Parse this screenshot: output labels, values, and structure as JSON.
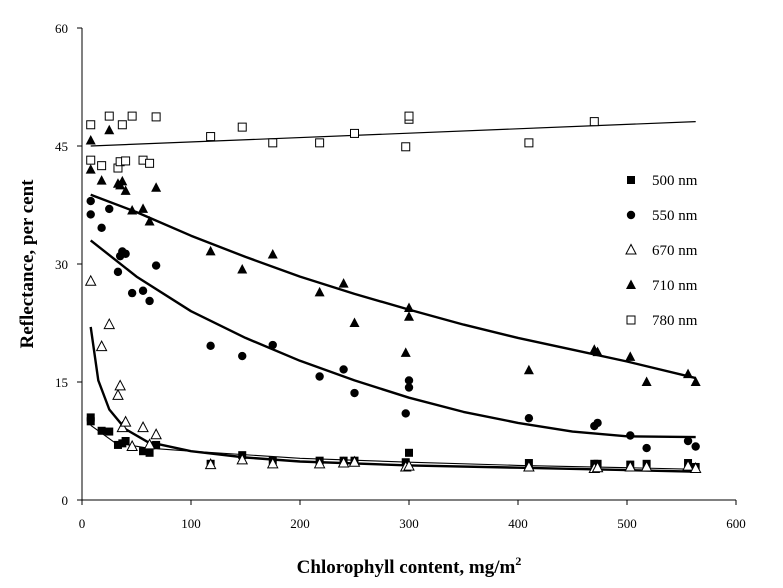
{
  "chart_data": {
    "type": "scatter",
    "title": "",
    "xlabel": "Chlorophyll content, mg/m",
    "xlabel_sup": "2",
    "ylabel": "Reflectance, per cent",
    "xlim": [
      0,
      600
    ],
    "ylim": [
      0,
      60
    ],
    "xticks": [
      "0",
      "100",
      "200",
      "300",
      "400",
      "500",
      "600"
    ],
    "yticks": [
      "0",
      "15",
      "30",
      "45",
      "60"
    ],
    "grid": false,
    "legend_position": "right",
    "series": [
      {
        "name": "500 nm",
        "marker": "filled-square",
        "points": [
          [
            8,
            10
          ],
          [
            8,
            10.5
          ],
          [
            18,
            8.8
          ],
          [
            25,
            8.7
          ],
          [
            33,
            7
          ],
          [
            37,
            7.2
          ],
          [
            40,
            7.5
          ],
          [
            56,
            6.2
          ],
          [
            62,
            6
          ],
          [
            68,
            7
          ],
          [
            118,
            4.6
          ],
          [
            147,
            5.7
          ],
          [
            175,
            5
          ],
          [
            218,
            5
          ],
          [
            240,
            5
          ],
          [
            250,
            5
          ],
          [
            297,
            4.8
          ],
          [
            300,
            6
          ],
          [
            410,
            4.7
          ],
          [
            470,
            4.6
          ],
          [
            473,
            4.6
          ],
          [
            503,
            4.5
          ],
          [
            518,
            4.6
          ],
          [
            556,
            4.7
          ],
          [
            563,
            4.2
          ]
        ],
        "fit": [
          [
            8,
            9.5
          ],
          [
            30,
            7.3
          ],
          [
            60,
            6.6
          ],
          [
            100,
            6.2
          ],
          [
            200,
            5.3
          ],
          [
            300,
            4.8
          ],
          [
            400,
            4.4
          ],
          [
            500,
            4.1
          ],
          [
            563,
            3.9
          ]
        ]
      },
      {
        "name": "550 nm",
        "marker": "filled-circle",
        "points": [
          [
            8,
            38
          ],
          [
            8,
            36.3
          ],
          [
            18,
            34.6
          ],
          [
            25,
            37
          ],
          [
            33,
            29
          ],
          [
            35,
            31
          ],
          [
            37,
            31.6
          ],
          [
            40,
            31.3
          ],
          [
            46,
            26.3
          ],
          [
            56,
            26.6
          ],
          [
            62,
            25.3
          ],
          [
            68,
            29.8
          ],
          [
            118,
            19.6
          ],
          [
            147,
            18.3
          ],
          [
            175,
            19.7
          ],
          [
            218,
            15.7
          ],
          [
            240,
            16.6
          ],
          [
            250,
            13.6
          ],
          [
            297,
            11
          ],
          [
            300,
            15.2
          ],
          [
            300,
            14.3
          ],
          [
            410,
            10.4
          ],
          [
            470,
            9.4
          ],
          [
            473,
            9.8
          ],
          [
            503,
            8.2
          ],
          [
            518,
            6.6
          ],
          [
            556,
            7.5
          ],
          [
            563,
            6.8
          ]
        ],
        "fit": [
          [
            8,
            33
          ],
          [
            50,
            28.4
          ],
          [
            100,
            24
          ],
          [
            150,
            20.6
          ],
          [
            200,
            17.7
          ],
          [
            250,
            15.2
          ],
          [
            300,
            13
          ],
          [
            350,
            11.2
          ],
          [
            400,
            9.8
          ],
          [
            450,
            8.7
          ],
          [
            500,
            8.1
          ],
          [
            563,
            8
          ]
        ]
      },
      {
        "name": "670 nm",
        "marker": "open-triangle",
        "points": [
          [
            8,
            27.8
          ],
          [
            18,
            19.5
          ],
          [
            25,
            22.3
          ],
          [
            33,
            13.3
          ],
          [
            35,
            14.5
          ],
          [
            37,
            9.2
          ],
          [
            40,
            9.9
          ],
          [
            46,
            6.8
          ],
          [
            56,
            9.2
          ],
          [
            62,
            7
          ],
          [
            68,
            8.3
          ],
          [
            118,
            4.5
          ],
          [
            147,
            5.1
          ],
          [
            175,
            4.6
          ],
          [
            218,
            4.6
          ],
          [
            240,
            4.7
          ],
          [
            250,
            4.8
          ],
          [
            297,
            4.2
          ],
          [
            300,
            4.3
          ],
          [
            410,
            4.2
          ],
          [
            470,
            4
          ],
          [
            473,
            4.1
          ],
          [
            503,
            4.2
          ],
          [
            518,
            4.2
          ],
          [
            556,
            4.3
          ],
          [
            563,
            4
          ]
        ],
        "fit": [
          [
            8,
            22
          ],
          [
            15,
            15.2
          ],
          [
            25,
            11.5
          ],
          [
            40,
            9
          ],
          [
            60,
            7.4
          ],
          [
            100,
            6.2
          ],
          [
            150,
            5.4
          ],
          [
            200,
            4.9
          ],
          [
            300,
            4.4
          ],
          [
            400,
            4.1
          ],
          [
            500,
            3.8
          ],
          [
            563,
            3.6
          ]
        ]
      },
      {
        "name": "710 nm",
        "marker": "filled-triangle",
        "points": [
          [
            8,
            45.7
          ],
          [
            8,
            42
          ],
          [
            18,
            40.6
          ],
          [
            25,
            47
          ],
          [
            33,
            40.2
          ],
          [
            35,
            40
          ],
          [
            37,
            40.5
          ],
          [
            40,
            39.3
          ],
          [
            46,
            36.8
          ],
          [
            56,
            37
          ],
          [
            62,
            35.4
          ],
          [
            68,
            39.7
          ],
          [
            118,
            31.6
          ],
          [
            147,
            29.3
          ],
          [
            175,
            31.2
          ],
          [
            218,
            26.4
          ],
          [
            240,
            27.5
          ],
          [
            250,
            22.5
          ],
          [
            297,
            18.7
          ],
          [
            300,
            24.4
          ],
          [
            300,
            23.3
          ],
          [
            410,
            16.5
          ],
          [
            470,
            19.1
          ],
          [
            473,
            18.8
          ],
          [
            503,
            18.2
          ],
          [
            518,
            15
          ],
          [
            556,
            16
          ],
          [
            563,
            15
          ]
        ],
        "fit": [
          [
            8,
            38.8
          ],
          [
            50,
            36.6
          ],
          [
            100,
            33.6
          ],
          [
            150,
            30.9
          ],
          [
            200,
            28.4
          ],
          [
            250,
            26.2
          ],
          [
            300,
            24.2
          ],
          [
            350,
            22.3
          ],
          [
            400,
            20.6
          ],
          [
            450,
            19.1
          ],
          [
            500,
            17.6
          ],
          [
            563,
            15.5
          ]
        ]
      },
      {
        "name": "780 nm",
        "marker": "open-square",
        "points": [
          [
            8,
            47.7
          ],
          [
            8,
            43.2
          ],
          [
            18,
            42.5
          ],
          [
            25,
            48.8
          ],
          [
            33,
            42.2
          ],
          [
            35,
            43
          ],
          [
            37,
            47.7
          ],
          [
            40,
            43.1
          ],
          [
            46,
            48.8
          ],
          [
            56,
            43.2
          ],
          [
            62,
            42.8
          ],
          [
            68,
            48.7
          ],
          [
            118,
            46.2
          ],
          [
            147,
            47.4
          ],
          [
            175,
            45.4
          ],
          [
            218,
            45.4
          ],
          [
            250,
            46.6
          ],
          [
            297,
            44.9
          ],
          [
            300,
            48.4
          ],
          [
            300,
            48.8
          ],
          [
            410,
            45.4
          ],
          [
            470,
            48.1
          ]
        ],
        "fit": [
          [
            8,
            45
          ],
          [
            563,
            48.1
          ]
        ]
      }
    ]
  }
}
